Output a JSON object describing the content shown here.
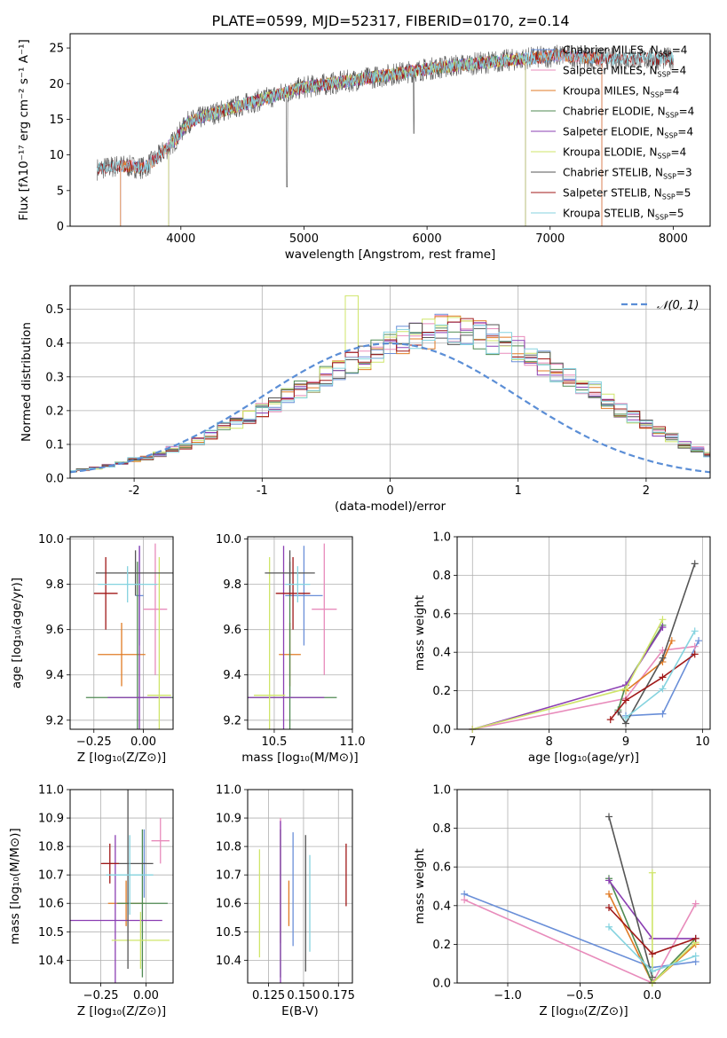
{
  "figure_title": "PLATE=0599, MJD=52317, FIBERID=0170, z=0.14",
  "model_colors": [
    "#6a8fd8",
    "#e88bbb",
    "#e07b24",
    "#4f8a52",
    "#8b3fb3",
    "#cfe56a",
    "#555555",
    "#a01818",
    "#85d3df"
  ],
  "chart_data": [
    {
      "id": "spectrum",
      "type": "line",
      "xlabel": "wavelength [Angstrom, rest frame]",
      "ylabel": "Flux [fλ10⁻¹⁷ erg cm⁻² s⁻¹ A⁻¹]",
      "xlim": [
        3100,
        8300
      ],
      "ylim": [
        0,
        27
      ],
      "xticks": [
        4000,
        5000,
        6000,
        7000,
        8000
      ],
      "yticks": [
        0,
        5,
        10,
        15,
        20,
        25
      ],
      "legend_position": "top-right",
      "legend": [
        {
          "label": "Chabrier MILES, N",
          "sub": "SSP",
          "tail": "=4"
        },
        {
          "label": "Salpeter MILES, N",
          "sub": "SSP",
          "tail": "=4"
        },
        {
          "label": "Kroupa MILES, N",
          "sub": "SSP",
          "tail": "=4"
        },
        {
          "label": "Chabrier ELODIE, N",
          "sub": "SSP",
          "tail": "=4"
        },
        {
          "label": "Salpeter ELODIE, N",
          "sub": "SSP",
          "tail": "=4"
        },
        {
          "label": "Kroupa ELODIE, N",
          "sub": "SSP",
          "tail": "=4"
        },
        {
          "label": "Chabrier STELIB, N",
          "sub": "SSP",
          "tail": "=3"
        },
        {
          "label": "Salpeter STELIB, N",
          "sub": "SSP",
          "tail": "=5"
        },
        {
          "label": "Kroupa STELIB, N",
          "sub": "SSP",
          "tail": "=5"
        }
      ],
      "continuum": {
        "x": [
          3320,
          3500,
          3700,
          3800,
          3950,
          4050,
          4200,
          4400,
          4700,
          5000,
          5300,
          5600,
          5900,
          6200,
          6500,
          6800,
          7100,
          7400
        ],
        "y": [
          8,
          8.5,
          8.2,
          9.5,
          12,
          14.5,
          15.5,
          16.5,
          18,
          19.5,
          20.2,
          21,
          21.8,
          22.5,
          23,
          23.5,
          24,
          23.5
        ]
      },
      "model_ranges": [
        [
          3510,
          7420
        ],
        [
          3510,
          7420
        ],
        [
          3510,
          7420
        ],
        [
          3900,
          6800
        ],
        [
          3900,
          6800
        ],
        [
          3900,
          6800
        ],
        [
          3320,
          8000
        ],
        [
          3320,
          8000
        ],
        [
          3320,
          8000
        ]
      ]
    },
    {
      "id": "residuals",
      "type": "histogram",
      "xlabel": "(data-model)/error",
      "ylabel": "Normed distribution",
      "xlim": [
        -2.5,
        2.5
      ],
      "ylim": [
        0,
        0.57
      ],
      "xticks": [
        -2,
        -1,
        0,
        1,
        2
      ],
      "yticks": [
        0.0,
        0.1,
        0.2,
        0.3,
        0.4,
        0.5
      ],
      "grid": true,
      "legend_position": "top-right",
      "reference_curve": {
        "label": "𝒩(0, 1)",
        "color": "#5b8ed6",
        "style": "dashed"
      },
      "bin_width": 0.1,
      "base": [
        0.02,
        0.025,
        0.03,
        0.037,
        0.045,
        0.055,
        0.06,
        0.07,
        0.085,
        0.095,
        0.11,
        0.13,
        0.15,
        0.165,
        0.18,
        0.2,
        0.22,
        0.24,
        0.26,
        0.28,
        0.3,
        0.32,
        0.34,
        0.36,
        0.38,
        0.4,
        0.41,
        0.42,
        0.43,
        0.44,
        0.44,
        0.43,
        0.42,
        0.41,
        0.4,
        0.38,
        0.36,
        0.34,
        0.32,
        0.3,
        0.28,
        0.26,
        0.23,
        0.2,
        0.18,
        0.16,
        0.14,
        0.12,
        0.1,
        0.085,
        0.07
      ]
    },
    {
      "id": "age_vs_Z",
      "type": "errorbar",
      "xlabel": "Z [log₁₀(Z/Z⊙)]",
      "ylabel": "age  [log₁₀(age/yr)]",
      "xlim": [
        -0.37,
        0.15
      ],
      "ylim": [
        9.16,
        10.01
      ],
      "xticks": [
        -0.25,
        0.0
      ],
      "xtick_labels": [
        "−0.25",
        "0.00"
      ],
      "yticks": [
        9.2,
        9.4,
        9.6,
        9.8,
        10.0
      ],
      "grid": true,
      "points": [
        {
          "x": -0.02,
          "y": 9.75,
          "xerr": 0.02,
          "yerr": 0.22
        },
        {
          "x": 0.06,
          "y": 9.69,
          "xerr": 0.06,
          "yerr": 0.29
        },
        {
          "x": -0.11,
          "y": 9.49,
          "xerr": 0.12,
          "yerr": 0.14
        },
        {
          "x": -0.03,
          "y": 9.3,
          "xerr": 0.26,
          "yerr": 0.6
        },
        {
          "x": -0.02,
          "y": 9.3,
          "xerr": 0.16,
          "yerr": 0.67
        },
        {
          "x": 0.08,
          "y": 9.31,
          "xerr": 0.06,
          "yerr": 0.61
        },
        {
          "x": -0.04,
          "y": 9.85,
          "xerr": 0.2,
          "yerr": 0.1
        },
        {
          "x": -0.19,
          "y": 9.76,
          "xerr": 0.06,
          "yerr": 0.16
        },
        {
          "x": -0.08,
          "y": 9.8,
          "xerr": 0.15,
          "yerr": 0.08
        }
      ]
    },
    {
      "id": "age_vs_mass",
      "type": "errorbar",
      "xlabel": "mass [log₁₀(M/M⊙)]",
      "ylabel": "",
      "xlim": [
        10.33,
        11.0
      ],
      "ylim": [
        9.16,
        10.01
      ],
      "xticks": [
        10.5,
        11.0
      ],
      "yticks": [
        9.2,
        9.4,
        9.6,
        9.8,
        10.0
      ],
      "grid": true,
      "points": [
        {
          "x": 10.69,
          "y": 9.75,
          "xerr": 0.12,
          "yerr": 0.22
        },
        {
          "x": 10.82,
          "y": 9.69,
          "xerr": 0.08,
          "yerr": 0.29
        },
        {
          "x": 10.6,
          "y": 9.49,
          "xerr": 0.07,
          "yerr": 0.14
        },
        {
          "x": 10.6,
          "y": 9.3,
          "xerr": 0.3,
          "yerr": 0.6
        },
        {
          "x": 10.56,
          "y": 9.3,
          "xerr": 0.26,
          "yerr": 0.67
        },
        {
          "x": 10.47,
          "y": 9.31,
          "xerr": 0.1,
          "yerr": 0.61
        },
        {
          "x": 10.6,
          "y": 9.85,
          "xerr": 0.16,
          "yerr": 0.1
        },
        {
          "x": 10.62,
          "y": 9.76,
          "xerr": 0.11,
          "yerr": 0.16
        },
        {
          "x": 10.65,
          "y": 9.8,
          "xerr": 0.08,
          "yerr": 0.08
        }
      ]
    },
    {
      "id": "weight_vs_age",
      "type": "line",
      "xlabel": "age  [log₁₀(age/yr)]",
      "ylabel": "mass weight",
      "xlim": [
        6.8,
        10.1
      ],
      "ylim": [
        0,
        1.0
      ],
      "xticks": [
        7,
        8,
        9,
        10
      ],
      "yticks": [
        0.0,
        0.2,
        0.4,
        0.6,
        0.8,
        1.0
      ],
      "grid": true,
      "series": [
        {
          "x": [
            9.0,
            9.48,
            9.95
          ],
          "y": [
            0.07,
            0.08,
            0.46
          ]
        },
        {
          "x": [
            7.0,
            9.0,
            9.48,
            9.9
          ],
          "y": [
            0.0,
            0.16,
            0.41,
            0.43
          ]
        },
        {
          "x": [
            9.0,
            9.48,
            9.6
          ],
          "y": [
            0.2,
            0.35,
            0.46
          ]
        },
        {
          "x": [
            8.9,
            9.0,
            9.48
          ],
          "y": [
            0.1,
            0.23,
            0.54
          ]
        },
        {
          "x": [
            7.0,
            9.0,
            9.48
          ],
          "y": [
            0.0,
            0.23,
            0.53
          ]
        },
        {
          "x": [
            7.0,
            9.0,
            9.48
          ],
          "y": [
            0.0,
            0.21,
            0.57
          ]
        },
        {
          "x": [
            8.9,
            9.0,
            9.48,
            9.9
          ],
          "y": [
            0.09,
            0.03,
            0.37,
            0.86
          ]
        },
        {
          "x": [
            8.8,
            9.0,
            9.48,
            9.9
          ],
          "y": [
            0.05,
            0.15,
            0.27,
            0.39
          ]
        },
        {
          "x": [
            9.0,
            9.48,
            9.9
          ],
          "y": [
            0.06,
            0.21,
            0.51
          ]
        }
      ]
    },
    {
      "id": "mass_vs_Z",
      "type": "errorbar",
      "xlabel": "Z [log₁₀(Z/Z⊙)]",
      "ylabel": "mass [log₁₀(M/M⊙)]",
      "xlim": [
        -0.42,
        0.15
      ],
      "ylim": [
        10.32,
        11.0
      ],
      "xticks": [
        -0.25,
        0.0
      ],
      "xtick_labels": [
        "−0.25",
        "0.00"
      ],
      "yticks": [
        10.4,
        10.5,
        10.6,
        10.7,
        10.8,
        10.9,
        11.0
      ],
      "grid": true,
      "points": [
        {
          "x": -0.01,
          "y": 10.74,
          "xerr": 0.01,
          "yerr": 0.12
        },
        {
          "x": 0.08,
          "y": 10.82,
          "xerr": 0.05,
          "yerr": 0.08
        },
        {
          "x": -0.11,
          "y": 10.6,
          "xerr": 0.1,
          "yerr": 0.08
        },
        {
          "x": -0.02,
          "y": 10.6,
          "xerr": 0.14,
          "yerr": 0.26
        },
        {
          "x": -0.17,
          "y": 10.54,
          "xerr": 0.26,
          "yerr": 0.3
        },
        {
          "x": -0.03,
          "y": 10.47,
          "xerr": 0.16,
          "yerr": 0.1
        },
        {
          "x": -0.1,
          "y": 10.74,
          "xerr": 0.14,
          "yerr": 0.37
        },
        {
          "x": -0.2,
          "y": 10.74,
          "xerr": 0.05,
          "yerr": 0.07
        },
        {
          "x": -0.09,
          "y": 10.7,
          "xerr": 0.13,
          "yerr": 0.14
        }
      ]
    },
    {
      "id": "mass_vs_EBV",
      "type": "errorbar",
      "xlabel": "E(B-V)",
      "ylabel": "",
      "xlim": [
        0.11,
        0.185
      ],
      "ylim": [
        10.32,
        11.0
      ],
      "xticks": [
        0.125,
        0.15,
        0.175
      ],
      "yticks": [
        10.4,
        10.5,
        10.6,
        10.7,
        10.8,
        10.9,
        11.0
      ],
      "grid": true,
      "points": [
        {
          "x": 0.1425,
          "y": 10.65,
          "xerr": 0,
          "yerr": 0.2
        },
        {
          "x": 0.1335,
          "y": 10.68,
          "xerr": 0,
          "yerr": 0.22
        },
        {
          "x": 0.1395,
          "y": 10.6,
          "xerr": 0,
          "yerr": 0.08
        },
        {
          "x": 0.1335,
          "y": 10.6,
          "xerr": 0,
          "yerr": 0.26
        },
        {
          "x": 0.1335,
          "y": 10.6,
          "xerr": 0,
          "yerr": 0.29
        },
        {
          "x": 0.1185,
          "y": 10.6,
          "xerr": 0,
          "yerr": 0.19
        },
        {
          "x": 0.1515,
          "y": 10.6,
          "xerr": 0,
          "yerr": 0.24
        },
        {
          "x": 0.1805,
          "y": 10.7,
          "xerr": 0,
          "yerr": 0.11
        },
        {
          "x": 0.1545,
          "y": 10.6,
          "xerr": 0,
          "yerr": 0.17
        }
      ]
    },
    {
      "id": "weight_vs_Z",
      "type": "line",
      "xlabel": "Z [log₁₀(Z/Z⊙)]",
      "ylabel": "mass weight",
      "xlim": [
        -1.35,
        0.4
      ],
      "ylim": [
        0,
        1.0
      ],
      "xticks": [
        -1.0,
        -0.5,
        0.0
      ],
      "xtick_labels": [
        "−1.0",
        "−0.5",
        "0.0"
      ],
      "yticks": [
        0.0,
        0.2,
        0.4,
        0.6,
        0.8,
        1.0
      ],
      "grid": true,
      "series": [
        {
          "x": [
            -1.3,
            0.0,
            0.3
          ],
          "y": [
            0.46,
            0.08,
            0.11
          ]
        },
        {
          "x": [
            -1.3,
            0.0,
            0.3
          ],
          "y": [
            0.43,
            0.0,
            0.41
          ]
        },
        {
          "x": [
            -0.3,
            0.0,
            0.3
          ],
          "y": [
            0.46,
            0.0,
            0.2
          ]
        },
        {
          "x": [
            -0.3,
            0.0,
            0.3
          ],
          "y": [
            0.54,
            0.0,
            0.23
          ]
        },
        {
          "x": [
            -0.3,
            0.0,
            0.3
          ],
          "y": [
            0.53,
            0.23,
            0.23
          ]
        },
        {
          "x": [
            0.0,
            0.0,
            0.3
          ],
          "y": [
            0.57,
            0.0,
            0.21
          ]
        },
        {
          "x": [
            -0.3,
            0.0
          ],
          "y": [
            0.86,
            0.03
          ]
        },
        {
          "x": [
            -0.3,
            0.0,
            0.3
          ],
          "y": [
            0.39,
            0.15,
            0.23
          ]
        },
        {
          "x": [
            -0.3,
            0.0,
            0.3
          ],
          "y": [
            0.29,
            0.06,
            0.14
          ]
        }
      ]
    }
  ]
}
